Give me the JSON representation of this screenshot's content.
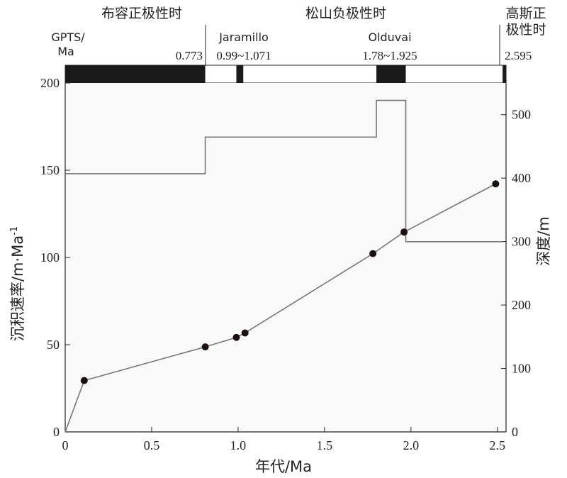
{
  "chart_data": {
    "type": "line",
    "x_label": "年代/Ma",
    "y_left_label": "沉积速率/m·Ma",
    "y_left_label_sup": "-1",
    "y_right_label": "深度/m",
    "x_range": [
      0,
      2.55
    ],
    "y_left_range": [
      0,
      200
    ],
    "y_right_range": [
      0,
      550
    ],
    "x_ticks": [
      0,
      0.5,
      1.0,
      1.5,
      2.0,
      2.5
    ],
    "x_tick_labels": [
      "0",
      "0.5",
      "1.0",
      "1.5",
      "2.0",
      "2.5"
    ],
    "y_left_ticks": [
      0,
      50,
      100,
      150,
      200
    ],
    "y_left_tick_labels": [
      "0",
      "50",
      "100",
      "150",
      "200"
    ],
    "y_right_ticks": [
      0,
      100,
      200,
      300,
      400,
      500
    ],
    "y_right_tick_labels": [
      "0",
      "100",
      "200",
      "300",
      "400",
      "500"
    ],
    "grid": false,
    "series": [
      {
        "axis": "left",
        "style": "step",
        "color": "#777777",
        "points": [
          [
            0,
            148
          ],
          [
            0.81,
            148
          ],
          [
            0.81,
            169
          ],
          [
            1.8,
            169
          ],
          [
            1.8,
            190
          ],
          [
            1.97,
            190
          ],
          [
            1.97,
            109
          ],
          [
            2.53,
            109
          ]
        ]
      },
      {
        "axis": "right",
        "style": "line-markers",
        "color": "#777777",
        "marker_color": "#1a1010",
        "points": [
          [
            0,
            0
          ],
          [
            0.11,
            81
          ],
          [
            0.81,
            134
          ],
          [
            0.99,
            149
          ],
          [
            1.04,
            156
          ],
          [
            1.78,
            281
          ],
          [
            1.96,
            315
          ],
          [
            2.49,
            391
          ]
        ]
      }
    ]
  },
  "gpts": {
    "label_line1": "GPTS/",
    "label_line2": "Ma",
    "epochs": [
      {
        "name": "布容正极性时"
      },
      {
        "name": "松山负极性时"
      },
      {
        "name_line1": "高斯正",
        "name_line2": "极性时"
      }
    ],
    "subchron_labels": [
      "Jaramillo",
      "Olduvai"
    ],
    "boundary_labels": [
      "0.773",
      "0.99~1.071",
      "1.78~1.925",
      "2.595"
    ],
    "normal_intervals": [
      [
        0,
        0.81
      ],
      [
        0.99,
        1.03
      ],
      [
        1.8,
        1.97
      ],
      [
        2.53,
        2.55
      ]
    ],
    "bar_color": "#1a1a1a"
  }
}
